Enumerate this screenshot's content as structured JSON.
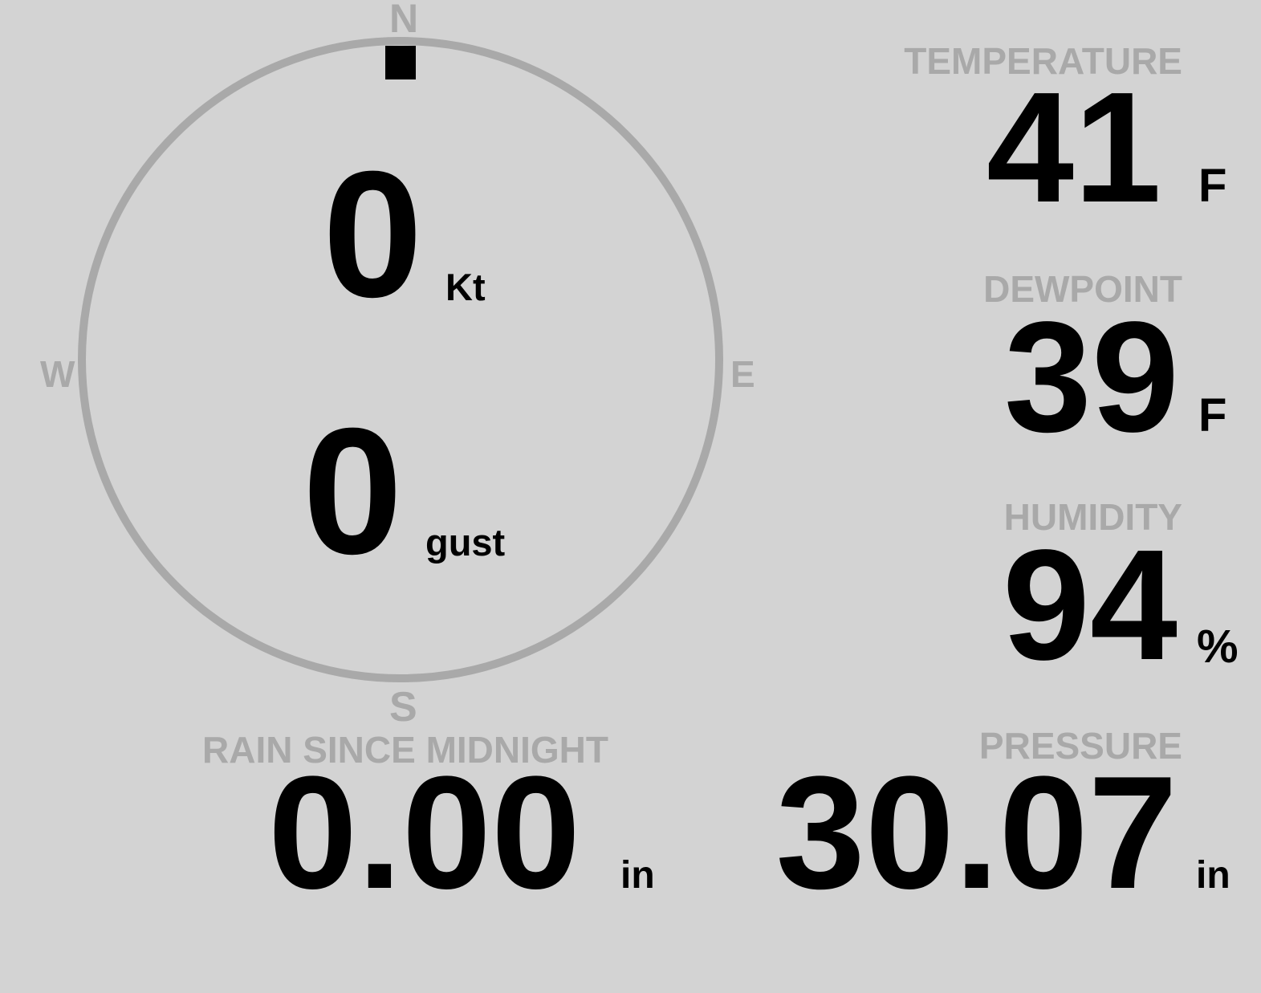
{
  "colors": {
    "background": "#d3d3d3",
    "label": "#a9a9a9",
    "value": "#000000",
    "dial": "#a9a9a9"
  },
  "wind": {
    "compass": {
      "north": "N",
      "east": "E",
      "south": "S",
      "west": "W"
    },
    "direction_degrees": 0,
    "speed": "0",
    "speed_unit": "Kt",
    "gust": "0",
    "gust_unit": "gust"
  },
  "temperature": {
    "label": "TEMPERATURE",
    "value": "41",
    "unit": "F"
  },
  "dewpoint": {
    "label": "DEWPOINT",
    "value": "39",
    "unit": "F"
  },
  "humidity": {
    "label": "HUMIDITY",
    "value": "94",
    "unit": "%"
  },
  "rain": {
    "label": "RAIN SINCE MIDNIGHT",
    "value": "0.00",
    "unit": "in"
  },
  "pressure": {
    "label": "PRESSURE",
    "value": "30.07",
    "unit": "in"
  }
}
